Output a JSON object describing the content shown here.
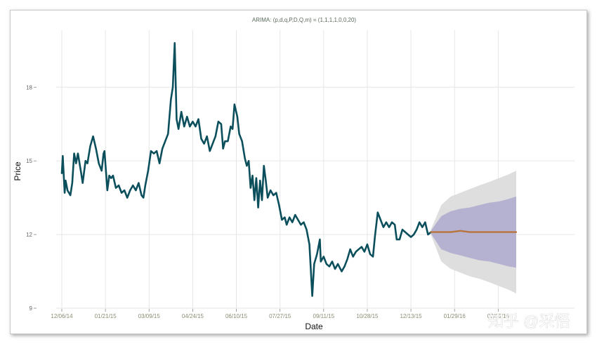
{
  "chart_data": {
    "type": "line",
    "title": "ARIMA: (p,d,q,P,D,Q,m) = (1,1,1,1,0,0,20)",
    "xlabel": "Date",
    "ylabel": "Price",
    "ylim": [
      9,
      20
    ],
    "yticks": [
      9,
      12,
      15,
      18
    ],
    "x_tick_labels": [
      "12/06/14",
      "01/21/15",
      "03/09/15",
      "04/24/15",
      "06/10/15",
      "07/27/15",
      "09/11/15",
      "10/28/15",
      "12/13/15",
      "01/29/16",
      "03/15/16"
    ],
    "x_range": [
      "2014-12-06",
      "2016-03-29"
    ],
    "grid": true,
    "series": [
      {
        "role": "observed",
        "color": "#0b4f5c",
        "points": [
          [
            "2014-12-06",
            14.5
          ],
          [
            "2014-12-07",
            15.2
          ],
          [
            "2014-12-09",
            13.7
          ],
          [
            "2014-12-10",
            14.2
          ],
          [
            "2014-12-12",
            13.8
          ],
          [
            "2014-12-15",
            13.6
          ],
          [
            "2014-12-17",
            14.1
          ],
          [
            "2014-12-19",
            15.3
          ],
          [
            "2014-12-21",
            14.9
          ],
          [
            "2014-12-23",
            15.3
          ],
          [
            "2014-12-26",
            14.6
          ],
          [
            "2014-12-28",
            14.1
          ],
          [
            "2014-12-31",
            15.0
          ],
          [
            "2015-01-02",
            14.9
          ],
          [
            "2015-01-05",
            15.6
          ],
          [
            "2015-01-08",
            16.0
          ],
          [
            "2015-01-11",
            15.5
          ],
          [
            "2015-01-14",
            14.9
          ],
          [
            "2015-01-17",
            14.6
          ],
          [
            "2015-01-19",
            15.3
          ],
          [
            "2015-01-20",
            15.4
          ],
          [
            "2015-01-23",
            13.8
          ],
          [
            "2015-01-25",
            14.4
          ],
          [
            "2015-01-27",
            14.3
          ],
          [
            "2015-01-29",
            14.4
          ],
          [
            "2015-02-01",
            13.9
          ],
          [
            "2015-02-04",
            14.0
          ],
          [
            "2015-02-07",
            13.7
          ],
          [
            "2015-02-10",
            13.8
          ],
          [
            "2015-02-13",
            13.5
          ],
          [
            "2015-02-16",
            13.8
          ],
          [
            "2015-02-19",
            14.0
          ],
          [
            "2015-02-22",
            13.8
          ],
          [
            "2015-02-25",
            14.1
          ],
          [
            "2015-02-28",
            13.6
          ],
          [
            "2015-03-02",
            13.5
          ],
          [
            "2015-03-04",
            14.0
          ],
          [
            "2015-03-07",
            14.6
          ],
          [
            "2015-03-10",
            15.4
          ],
          [
            "2015-03-13",
            15.3
          ],
          [
            "2015-03-16",
            15.4
          ],
          [
            "2015-03-19",
            14.9
          ],
          [
            "2015-03-22",
            15.5
          ],
          [
            "2015-03-25",
            15.8
          ],
          [
            "2015-03-28",
            16.1
          ],
          [
            "2015-03-31",
            17.5
          ],
          [
            "2015-04-02",
            18.0
          ],
          [
            "2015-04-04",
            19.8
          ],
          [
            "2015-04-06",
            16.7
          ],
          [
            "2015-04-08",
            16.3
          ],
          [
            "2015-04-11",
            17.0
          ],
          [
            "2015-04-14",
            16.4
          ],
          [
            "2015-04-17",
            16.8
          ],
          [
            "2015-04-20",
            16.4
          ],
          [
            "2015-04-23",
            16.6
          ],
          [
            "2015-04-26",
            16.4
          ],
          [
            "2015-04-29",
            16.7
          ],
          [
            "2015-05-02",
            15.9
          ],
          [
            "2015-05-05",
            15.7
          ],
          [
            "2015-05-08",
            16.0
          ],
          [
            "2015-05-11",
            15.4
          ],
          [
            "2015-05-14",
            15.7
          ],
          [
            "2015-05-17",
            16.0
          ],
          [
            "2015-05-20",
            16.6
          ],
          [
            "2015-05-23",
            16.5
          ],
          [
            "2015-05-25",
            15.5
          ],
          [
            "2015-05-27",
            15.8
          ],
          [
            "2015-05-30",
            15.8
          ],
          [
            "2015-06-02",
            16.4
          ],
          [
            "2015-06-04",
            16.3
          ],
          [
            "2015-06-06",
            17.3
          ],
          [
            "2015-06-09",
            16.8
          ],
          [
            "2015-06-11",
            16.1
          ],
          [
            "2015-06-14",
            15.8
          ],
          [
            "2015-06-17",
            15.1
          ],
          [
            "2015-06-19",
            14.8
          ],
          [
            "2015-06-21",
            15.0
          ],
          [
            "2015-06-23",
            13.9
          ],
          [
            "2015-06-25",
            14.4
          ],
          [
            "2015-06-27",
            13.4
          ],
          [
            "2015-06-29",
            14.3
          ],
          [
            "2015-07-01",
            13.1
          ],
          [
            "2015-07-03",
            14.2
          ],
          [
            "2015-07-05",
            13.4
          ],
          [
            "2015-07-07",
            14.8
          ],
          [
            "2015-07-09",
            14.2
          ],
          [
            "2015-07-11",
            13.5
          ],
          [
            "2015-07-14",
            13.8
          ],
          [
            "2015-07-17",
            13.6
          ],
          [
            "2015-07-20",
            13.7
          ],
          [
            "2015-07-23",
            13.2
          ],
          [
            "2015-07-26",
            12.6
          ],
          [
            "2015-07-29",
            12.7
          ],
          [
            "2015-07-31",
            12.4
          ],
          [
            "2015-08-03",
            12.7
          ],
          [
            "2015-08-06",
            12.5
          ],
          [
            "2015-08-09",
            12.8
          ],
          [
            "2015-08-12",
            12.6
          ],
          [
            "2015-08-15",
            12.4
          ],
          [
            "2015-08-18",
            12.5
          ],
          [
            "2015-08-21",
            12.2
          ],
          [
            "2015-08-24",
            11.6
          ],
          [
            "2015-08-26",
            10.2
          ],
          [
            "2015-08-27",
            9.5
          ],
          [
            "2015-08-29",
            10.8
          ],
          [
            "2015-09-01",
            11.2
          ],
          [
            "2015-09-04",
            11.8
          ],
          [
            "2015-09-05",
            10.9
          ],
          [
            "2015-09-08",
            11.1
          ],
          [
            "2015-09-11",
            10.8
          ],
          [
            "2015-09-14",
            10.7
          ],
          [
            "2015-09-17",
            10.9
          ],
          [
            "2015-09-20",
            10.6
          ],
          [
            "2015-09-23",
            10.8
          ],
          [
            "2015-09-27",
            10.5
          ],
          [
            "2015-09-30",
            10.7
          ],
          [
            "2015-10-03",
            11.0
          ],
          [
            "2015-10-06",
            11.4
          ],
          [
            "2015-10-09",
            11.1
          ],
          [
            "2015-10-12",
            11.3
          ],
          [
            "2015-10-15",
            11.4
          ],
          [
            "2015-10-18",
            11.5
          ],
          [
            "2015-10-21",
            11.3
          ],
          [
            "2015-10-24",
            11.6
          ],
          [
            "2015-10-27",
            11.2
          ],
          [
            "2015-10-30",
            11.1
          ],
          [
            "2015-11-01",
            11.9
          ],
          [
            "2015-11-04",
            12.9
          ],
          [
            "2015-11-07",
            12.6
          ],
          [
            "2015-11-10",
            12.3
          ],
          [
            "2015-11-13",
            12.5
          ],
          [
            "2015-11-16",
            12.3
          ],
          [
            "2015-11-19",
            12.5
          ],
          [
            "2015-11-22",
            12.4
          ],
          [
            "2015-11-24",
            11.8
          ],
          [
            "2015-11-27",
            11.8
          ],
          [
            "2015-11-30",
            12.2
          ],
          [
            "2015-12-03",
            12.1
          ],
          [
            "2015-12-06",
            12.0
          ],
          [
            "2015-12-09",
            11.9
          ],
          [
            "2015-12-12",
            12.0
          ],
          [
            "2015-12-15",
            12.2
          ],
          [
            "2015-12-18",
            12.5
          ],
          [
            "2015-12-21",
            12.3
          ],
          [
            "2015-12-24",
            12.5
          ],
          [
            "2015-12-27",
            12.0
          ],
          [
            "2015-12-30",
            12.1
          ]
        ]
      },
      {
        "role": "forecast",
        "color": "#b8743d",
        "points": [
          [
            "2015-12-30",
            12.1
          ],
          [
            "2016-01-10",
            12.1
          ],
          [
            "2016-01-20",
            12.1
          ],
          [
            "2016-01-30",
            12.15
          ],
          [
            "2016-02-09",
            12.1
          ],
          [
            "2016-02-19",
            12.1
          ],
          [
            "2016-03-01",
            12.1
          ],
          [
            "2016-03-11",
            12.1
          ],
          [
            "2016-03-21",
            12.1
          ],
          [
            "2016-03-29",
            12.1
          ]
        ]
      }
    ],
    "bands": [
      {
        "role": "95% interval",
        "color": "#dcdcdc",
        "x": [
          "2015-12-30",
          "2016-01-10",
          "2016-01-20",
          "2016-01-30",
          "2016-02-09",
          "2016-02-19",
          "2016-03-01",
          "2016-03-11",
          "2016-03-21",
          "2016-03-29"
        ],
        "lower": [
          12.0,
          10.9,
          10.6,
          10.45,
          10.3,
          10.2,
          10.05,
          9.9,
          9.75,
          9.6
        ],
        "upper": [
          12.2,
          13.2,
          13.55,
          13.7,
          13.85,
          14.0,
          14.15,
          14.3,
          14.45,
          14.6
        ]
      },
      {
        "role": "80% interval",
        "color": "#b2aed0",
        "x": [
          "2015-12-30",
          "2016-01-10",
          "2016-01-20",
          "2016-01-30",
          "2016-02-09",
          "2016-02-19",
          "2016-03-01",
          "2016-03-11",
          "2016-03-21",
          "2016-03-29"
        ],
        "lower": [
          12.05,
          11.4,
          11.25,
          11.15,
          11.05,
          10.95,
          10.9,
          10.8,
          10.7,
          10.65
        ],
        "upper": [
          12.15,
          12.75,
          12.95,
          13.05,
          13.1,
          13.2,
          13.3,
          13.35,
          13.45,
          13.55
        ]
      }
    ]
  },
  "watermark": "知乎 @采悟"
}
